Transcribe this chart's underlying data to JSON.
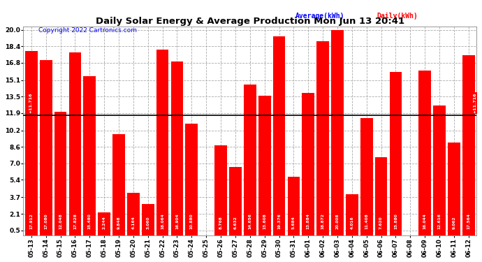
{
  "title": "Daily Solar Energy & Average Production Mon Jun 13 20:41",
  "copyright": "Copyright 2022 Cartronics.com",
  "legend_avg": "Average(kWh)",
  "legend_daily": "Daily(kWh)",
  "average_line": 11.716,
  "bar_color": "#FF0000",
  "avg_line_color": "#000000",
  "avg_legend_color": "#0000FF",
  "daily_legend_color": "#FF0000",
  "categories": [
    "05-13",
    "05-14",
    "05-15",
    "05-16",
    "05-17",
    "05-18",
    "05-19",
    "05-20",
    "05-21",
    "05-22",
    "05-23",
    "05-24",
    "05-25",
    "05-26",
    "05-27",
    "05-28",
    "05-29",
    "05-30",
    "05-31",
    "06-01",
    "06-02",
    "06-03",
    "06-04",
    "06-05",
    "06-06",
    "06-07",
    "06-08",
    "06-09",
    "06-10",
    "06-11",
    "06-12"
  ],
  "values": [
    17.912,
    17.08,
    12.048,
    17.828,
    15.48,
    2.244,
    9.848,
    4.164,
    3.06,
    18.064,
    16.904,
    10.88,
    0.0,
    8.768,
    6.632,
    14.656,
    13.608,
    19.376,
    5.684,
    13.884,
    18.872,
    20.008,
    4.016,
    11.408,
    7.62,
    15.88,
    0.0,
    16.044,
    12.616,
    9.062,
    17.564
  ],
  "ylim": [
    0.5,
    20.0
  ],
  "yticks": [
    0.5,
    2.1,
    3.7,
    5.4,
    7.0,
    8.6,
    10.2,
    11.9,
    13.5,
    15.1,
    16.8,
    18.4,
    20.0
  ],
  "avg_label": "+11.716",
  "background_color": "#FFFFFF",
  "grid_color": "#AAAAAA"
}
